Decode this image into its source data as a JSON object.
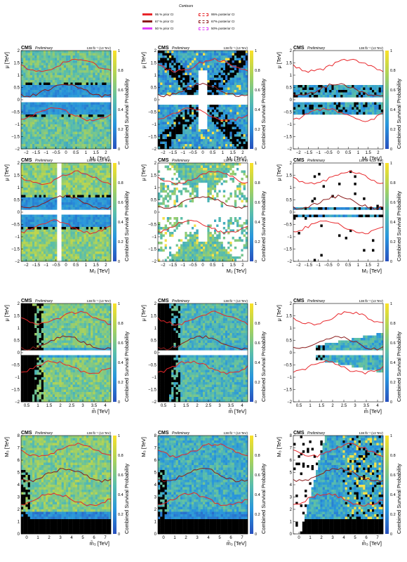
{
  "legend": {
    "title": "Contours",
    "items": [
      {
        "label": "95 % prior CI",
        "color": "#e8262a",
        "style": "solid"
      },
      {
        "label": "67 % prior CI",
        "color": "#8b1a1a",
        "style": "solid"
      },
      {
        "label": "50 % prior CI",
        "color": "#e040fb",
        "style": "solid"
      },
      {
        "label": "95% posterior CI",
        "color": "#e8262a",
        "style": "dashed"
      },
      {
        "label": "67% posterior CI",
        "color": "#8b1a1a",
        "style": "dashed"
      },
      {
        "label": "50% posterior CI",
        "color": "#e040fb",
        "style": "dashed"
      }
    ]
  },
  "panel_header": {
    "cms": "CMS",
    "preliminary": "Preliminary",
    "lumi": "138 fb⁻¹ (13 TeV)"
  },
  "colorbar": {
    "label": "Combined Survival Probability",
    "ticks": [
      "0",
      "0.2",
      "0.4",
      "0.6",
      "0.8",
      "1"
    ]
  },
  "chart_data": [
    {
      "type": "heatmap",
      "row": 0,
      "col": 0,
      "xlabel": "M₁ [TeV]",
      "ylabel": "μ [TeV]",
      "xlim": [
        -2,
        2
      ],
      "ylim": [
        -2,
        2
      ],
      "xticks": [
        "−2",
        "−1.5",
        "−1",
        "−0.5",
        "0",
        "0.5",
        "1",
        "1.5",
        "2"
      ],
      "yticks": [
        "−2",
        "−1.5",
        "−1",
        "−0.5",
        "0",
        "0.5",
        "1",
        "1.5",
        "2"
      ],
      "pattern": "cross_mu",
      "fill": 0.97,
      "level": 0.55
    },
    {
      "type": "heatmap",
      "row": 0,
      "col": 1,
      "xlabel": "M₁ [TeV]",
      "ylabel": "μ [TeV]",
      "xlim": [
        -2,
        2
      ],
      "ylim": [
        -2,
        2
      ],
      "xticks": [
        "−2",
        "−1.5",
        "−1",
        "−0.5",
        "0",
        "0.5",
        "1",
        "1.5",
        "2"
      ],
      "yticks": [
        "−2",
        "−1.5",
        "−1",
        "−0.5",
        "0",
        "0.5",
        "1",
        "1.5",
        "2"
      ],
      "pattern": "x_sparse",
      "fill": 0.7,
      "level": 0.3
    },
    {
      "type": "heatmap",
      "row": 0,
      "col": 2,
      "xlabel": "M₁ [TeV]",
      "ylabel": "μ [TeV]",
      "xlim": [
        -2,
        2
      ],
      "ylim": [
        -2,
        2
      ],
      "xticks": [
        "−2",
        "−1.5",
        "−1",
        "−0.5",
        "0",
        "0.5",
        "1",
        "1.5",
        "2"
      ],
      "yticks": [
        "−2",
        "−1.5",
        "−1",
        "−0.5",
        "0",
        "0.5",
        "1",
        "1.5",
        "2"
      ],
      "pattern": "band_mu",
      "fill": 0.8,
      "level": 0.35
    },
    {
      "type": "heatmap",
      "row": 1,
      "col": 0,
      "xlabel": "M₂ [TeV]",
      "ylabel": "μ [TeV]",
      "xlim": [
        -2,
        2
      ],
      "ylim": [
        -2,
        2
      ],
      "xticks": [
        "−2",
        "−1.5",
        "−1",
        "−0.5",
        "0",
        "0.5",
        "1",
        "1.5",
        "2"
      ],
      "yticks": [
        "−2",
        "−1.5",
        "−1",
        "−0.5",
        "0",
        "0.5",
        "1",
        "1.5",
        "2"
      ],
      "pattern": "cross_both",
      "fill": 0.97,
      "level": 0.65
    },
    {
      "type": "heatmap",
      "row": 1,
      "col": 1,
      "xlabel": "M₂ [TeV]",
      "ylabel": "μ [TeV]",
      "xlim": [
        -2,
        2
      ],
      "ylim": [
        -2,
        2
      ],
      "xticks": [
        "−2",
        "−1.5",
        "−1",
        "−0.5",
        "0",
        "0.5",
        "1",
        "1.5",
        "2"
      ],
      "yticks": [
        "−2",
        "−1.5",
        "−1",
        "−0.5",
        "0",
        "0.5",
        "1",
        "1.5",
        "2"
      ],
      "pattern": "x_wedge",
      "fill": 0.6,
      "level": 0.55
    },
    {
      "type": "heatmap",
      "row": 1,
      "col": 2,
      "xlabel": "M₂ [TeV]",
      "ylabel": "μ [TeV]",
      "xlim": [
        -2,
        2
      ],
      "ylim": [
        -2,
        2
      ],
      "xticks": [
        "−2",
        "−1.5",
        "−1",
        "−0.5",
        "0",
        "0.5",
        "1",
        "1.5",
        "2"
      ],
      "yticks": [
        "−2",
        "−1.5",
        "−1",
        "−0.5",
        "0",
        "0.5",
        "1",
        "1.5",
        "2"
      ],
      "pattern": "thin_band",
      "fill": 0.55,
      "level": 0.3
    },
    {
      "type": "heatmap",
      "row": 2,
      "col": 0,
      "xlabel": "m̃ [TeV]",
      "ylabel": "μ [TeV]",
      "xlim": [
        0.2,
        4.2
      ],
      "ylim": [
        -2,
        2
      ],
      "xticks": [
        "0.5",
        "1",
        "1.5",
        "2",
        "2.5",
        "3",
        "3.5",
        "4"
      ],
      "yticks": [
        "−2",
        "−1.5",
        "−1",
        "−0.5",
        "0",
        "0.5",
        "1",
        "1.5",
        "2"
      ],
      "pattern": "left_black_mu",
      "fill": 0.95,
      "level": 0.6
    },
    {
      "type": "heatmap",
      "row": 2,
      "col": 1,
      "xlabel": "m̃ [TeV]",
      "ylabel": "μ [TeV]",
      "xlim": [
        0.2,
        4.2
      ],
      "ylim": [
        -2,
        2
      ],
      "xticks": [
        "0.5",
        "1",
        "1.5",
        "2",
        "2.5",
        "3",
        "3.5",
        "4"
      ],
      "yticks": [
        "−2",
        "−1.5",
        "−1",
        "−0.5",
        "0",
        "0.5",
        "1",
        "1.5",
        "2"
      ],
      "pattern": "left_black_mu",
      "fill": 0.93,
      "level": 0.45
    },
    {
      "type": "heatmap",
      "row": 2,
      "col": 2,
      "xlabel": "m̃ [TeV]",
      "ylabel": "μ [TeV]",
      "xlim": [
        0.2,
        4.2
      ],
      "ylim": [
        -2,
        2
      ],
      "xticks": [
        "0.5",
        "1",
        "1.5",
        "2",
        "2.5",
        "3",
        "3.5",
        "4"
      ],
      "yticks": [
        "−2",
        "−1.5",
        "−1",
        "−0.5",
        "0",
        "0.5",
        "1",
        "1.5",
        "2"
      ],
      "pattern": "wedge_right",
      "fill": 0.85,
      "level": 0.4
    },
    {
      "type": "heatmap",
      "row": 3,
      "col": 0,
      "xlabel": "m̃₃ [TeV]",
      "ylabel": "M₃ [TeV]",
      "xlim": [
        0,
        7
      ],
      "ylim": [
        0,
        8
      ],
      "xticks": [
        "0",
        "1",
        "2",
        "3",
        "4",
        "5",
        "6",
        "7"
      ],
      "yticks": [
        "0",
        "1",
        "2",
        "3",
        "4",
        "5",
        "6",
        "7",
        "8"
      ],
      "pattern": "bottom_black",
      "fill": 0.97,
      "level": 0.62
    },
    {
      "type": "heatmap",
      "row": 3,
      "col": 1,
      "xlabel": "m̃₃ [TeV]",
      "ylabel": "M₃ [TeV]",
      "xlim": [
        0,
        7
      ],
      "ylim": [
        0,
        8
      ],
      "xticks": [
        "0",
        "1",
        "2",
        "3",
        "4",
        "5",
        "6",
        "7"
      ],
      "yticks": [
        "0",
        "1",
        "2",
        "3",
        "4",
        "5",
        "6",
        "7",
        "8"
      ],
      "pattern": "bottom_black",
      "fill": 0.95,
      "level": 0.4
    },
    {
      "type": "heatmap",
      "row": 3,
      "col": 2,
      "xlabel": "m̃₃ [TeV]",
      "ylabel": "M₃ [TeV]",
      "xlim": [
        0,
        7
      ],
      "ylim": [
        0,
        8
      ],
      "xticks": [
        "0",
        "1",
        "2",
        "3",
        "4",
        "5",
        "6",
        "7"
      ],
      "yticks": [
        "0",
        "1",
        "2",
        "3",
        "4",
        "5",
        "6",
        "7",
        "8"
      ],
      "pattern": "wedge_up",
      "fill": 0.8,
      "level": 0.35
    }
  ]
}
